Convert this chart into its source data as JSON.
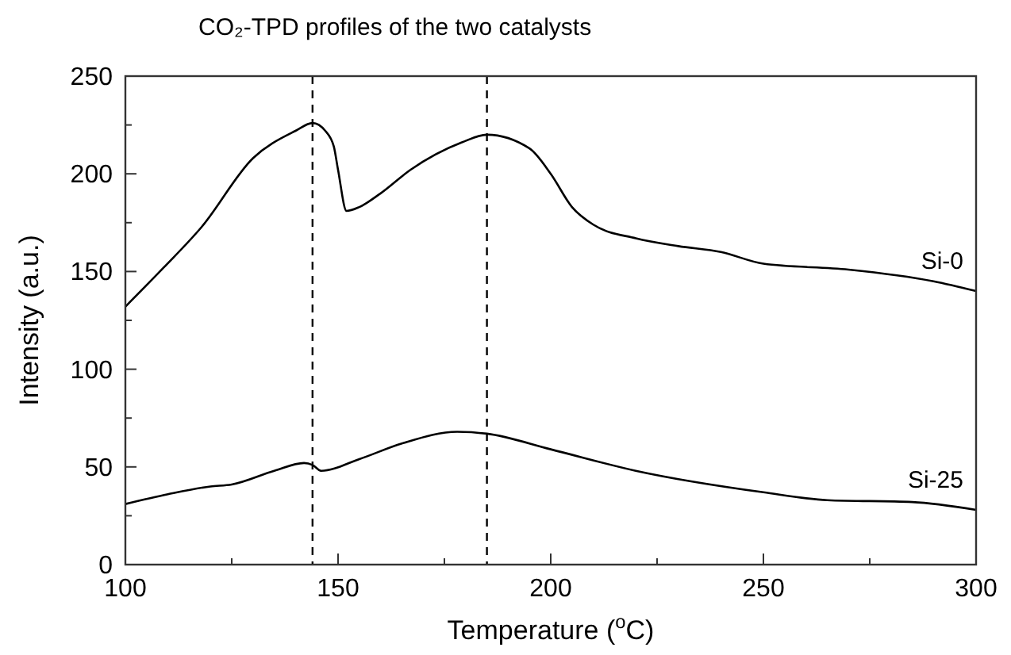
{
  "chart_data": {
    "type": "line",
    "title": "CO₂-TPD profiles of the two catalysts",
    "xlabel": "Temperature ($^{o}$C)",
    "ylabel": "Intensity (a.u.)",
    "xlim": [
      100,
      300
    ],
    "ylim": [
      0,
      250
    ],
    "xticks": [
      100,
      {
        "value": 125,
        "label": null
      },
      150,
      {
        "value": 175,
        "label": null
      },
      200,
      {
        "value": 225,
        "label": null
      },
      250,
      {
        "value": 275,
        "label": null
      },
      300
    ],
    "yticks": [
      0,
      {
        "value": 25,
        "label": null
      },
      50,
      {
        "value": 75,
        "label": null
      },
      100,
      {
        "value": 125,
        "label": null
      },
      150,
      {
        "value": 175,
        "label": null
      },
      200,
      {
        "value": 225,
        "label": null
      },
      250
    ],
    "grid": false,
    "marker": "none",
    "line_style": "solid",
    "series": [
      {
        "name": "Si-0",
        "color": "#000000",
        "x": [
          100,
          109,
          118,
          130,
          140,
          144,
          147,
          149,
          150,
          152,
          155,
          160,
          167,
          179,
          185,
          195,
          200,
          205,
          210,
          220,
          230,
          240,
          250,
          270,
          290,
          300
        ],
        "values": [
          132,
          152,
          173,
          208,
          222,
          226,
          222,
          214,
          202,
          181,
          183,
          190,
          202,
          216,
          220,
          213,
          200,
          183,
          174,
          167,
          163,
          160,
          154,
          151,
          145,
          140
        ]
      },
      {
        "name": "Si-25",
        "color": "#000000",
        "x": [
          100,
          110,
          120,
          125,
          135,
          142,
          144,
          146,
          155,
          165,
          178,
          185,
          200,
          220,
          250,
          265,
          285,
          300
        ],
        "values": [
          31,
          36,
          40,
          41,
          48,
          52,
          51,
          48,
          54,
          62,
          68,
          67,
          59,
          48,
          37,
          33,
          32,
          28
        ]
      }
    ],
    "ref_lines": [
      {
        "axis": "x",
        "value": 144,
        "color": "#000000",
        "line_style": "dashed"
      },
      {
        "axis": "x",
        "value": 185,
        "color": "#000000",
        "line_style": "dashed"
      }
    ]
  }
}
